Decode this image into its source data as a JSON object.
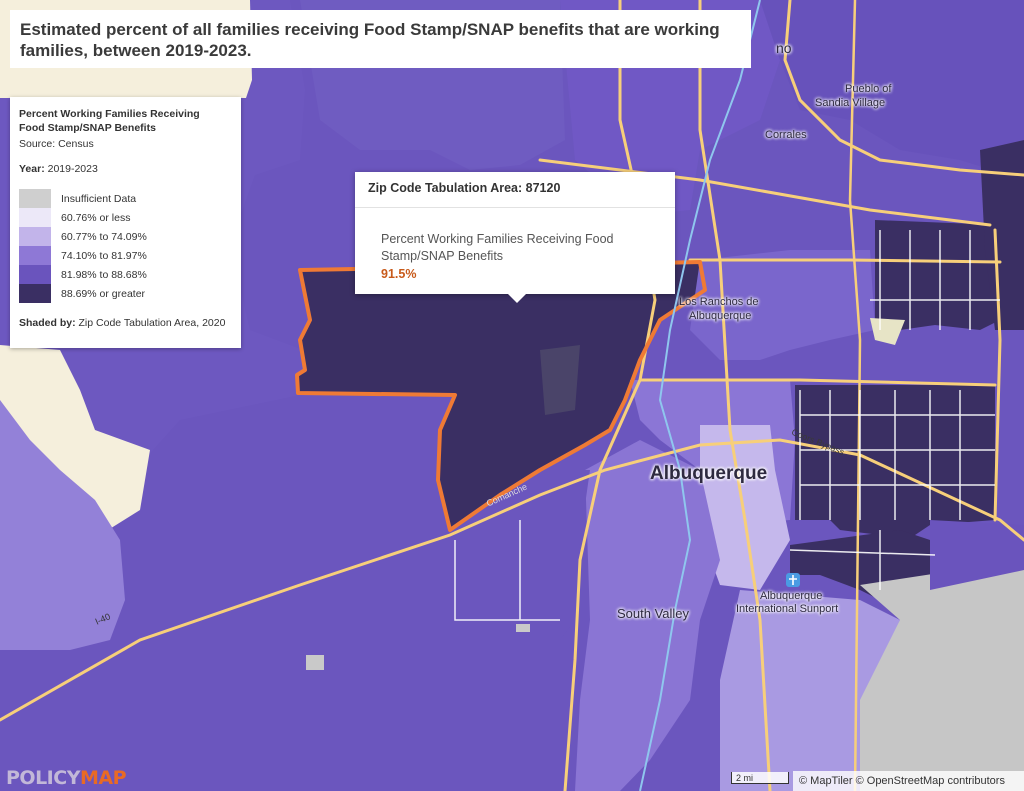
{
  "title": "Estimated percent of all families receiving Food Stamp/SNAP benefits that are working families, between 2019-2023.",
  "legend": {
    "title_line1": "Percent Working Families Receiving",
    "title_line2": "Food Stamp/SNAP Benefits",
    "source": "Source: Census",
    "year_label": "Year:",
    "year_value": "2019-2023",
    "classes": [
      {
        "label": "Insufficient Data",
        "color": "#cfcfcf"
      },
      {
        "label": "60.76% or less",
        "color": "#ece8f8"
      },
      {
        "label": "60.77% to 74.09%",
        "color": "#c2b4ea"
      },
      {
        "label": "74.10% to 81.97%",
        "color": "#8e78d6"
      },
      {
        "label": "81.98% to 88.68%",
        "color": "#6a54bd"
      },
      {
        "label": "88.69% or greater",
        "color": "#3a2f63"
      }
    ],
    "shaded_label": "Shaded by:",
    "shaded_value": "Zip Code Tabulation Area, 2020"
  },
  "tooltip": {
    "header": "Zip Code Tabulation Area: 87120",
    "metric_line1": "Percent Working Families Receiving Food",
    "metric_line2": "Stamp/SNAP Benefits",
    "value": "91.5%"
  },
  "places": {
    "albuquerque": "Albuquerque",
    "south_valley": "South Valley",
    "los_ranchos_1": "Los Ranchos de",
    "los_ranchos_2": "Albuquerque",
    "corrales": "Corrales",
    "pueblo_1": "Pueblo of",
    "pueblo_2": "Sandia Village",
    "airport_1": "Albuquerque",
    "airport_2": "International Sunport",
    "partial_rio": "no",
    "road_coors": "Coors Bypass",
    "road_comanche": "Comanche",
    "road_i40": "I-40"
  },
  "attribution": {
    "scale": "2 mi",
    "text": "© MapTiler © OpenStreetMap contributors"
  },
  "logo": {
    "part1": "POLICY",
    "part2": "MAP"
  },
  "colors": {
    "highlight_outline": "#ef7a35",
    "road": "#f7cf7a",
    "minor_road": "#ffffff"
  }
}
